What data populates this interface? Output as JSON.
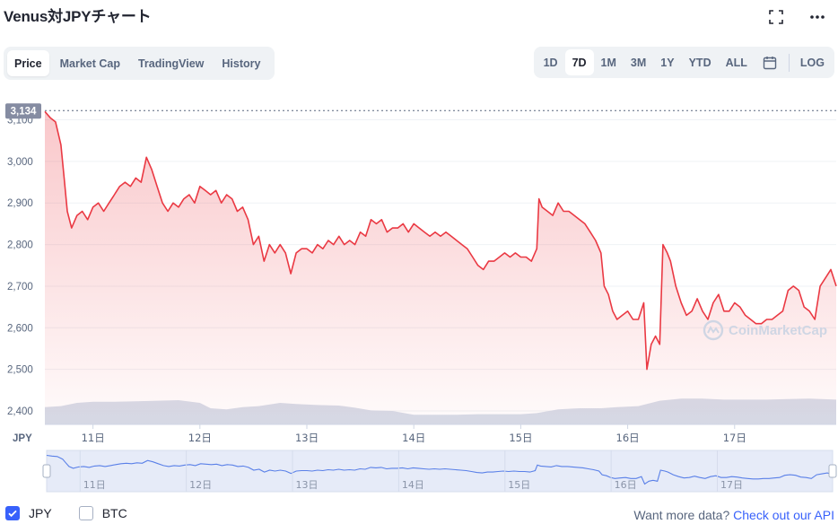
{
  "title": "Venus対JPYチャート",
  "tabs": [
    {
      "label": "Price",
      "active": true
    },
    {
      "label": "Market Cap",
      "active": false
    },
    {
      "label": "TradingView",
      "active": false
    },
    {
      "label": "History",
      "active": false
    }
  ],
  "ranges": [
    {
      "label": "1D",
      "active": false
    },
    {
      "label": "7D",
      "active": true
    },
    {
      "label": "1M",
      "active": false
    },
    {
      "label": "3M",
      "active": false
    },
    {
      "label": "1Y",
      "active": false
    },
    {
      "label": "YTD",
      "active": false
    },
    {
      "label": "ALL",
      "active": false
    }
  ],
  "log_label": "LOG",
  "watermark": "CoinMarketCap",
  "legend": {
    "jpy": "JPY",
    "btc": "BTC",
    "jpy_checked": true,
    "btc_checked": false
  },
  "api": {
    "prefix": "Want more data?",
    "link": "Check out our API"
  },
  "colors": {
    "line": "#ea3943",
    "accent": "#3861fb",
    "volume": "#cfd6e4"
  },
  "chart_data": {
    "type": "line",
    "currency_label": "JPY",
    "current_price_label": "3,134",
    "y_ticks": [
      "3,100",
      "3,000",
      "2,900",
      "2,800",
      "2,700",
      "2,600",
      "2,500",
      "2,400"
    ],
    "x_ticks": [
      "11日",
      "12日",
      "13日",
      "14日",
      "15日",
      "16日",
      "17日"
    ],
    "ylim": [
      2400,
      3140
    ],
    "x_range_days": [
      10.55,
      17.95
    ],
    "series": [
      {
        "type": "line",
        "points": [
          [
            10.55,
            3120
          ],
          [
            10.6,
            3105
          ],
          [
            10.65,
            3095
          ],
          [
            10.7,
            3040
          ],
          [
            10.73,
            2960
          ],
          [
            10.76,
            2880
          ],
          [
            10.8,
            2840
          ],
          [
            10.85,
            2870
          ],
          [
            10.9,
            2880
          ],
          [
            10.95,
            2860
          ],
          [
            11.0,
            2890
          ],
          [
            11.05,
            2900
          ],
          [
            11.1,
            2880
          ],
          [
            11.15,
            2900
          ],
          [
            11.2,
            2920
          ],
          [
            11.25,
            2940
          ],
          [
            11.3,
            2950
          ],
          [
            11.35,
            2940
          ],
          [
            11.4,
            2960
          ],
          [
            11.45,
            2950
          ],
          [
            11.5,
            3010
          ],
          [
            11.55,
            2980
          ],
          [
            11.6,
            2940
          ],
          [
            11.65,
            2900
          ],
          [
            11.7,
            2880
          ],
          [
            11.75,
            2900
          ],
          [
            11.8,
            2890
          ],
          [
            11.85,
            2910
          ],
          [
            11.9,
            2920
          ],
          [
            11.95,
            2900
          ],
          [
            12.0,
            2940
          ],
          [
            12.05,
            2930
          ],
          [
            12.1,
            2920
          ],
          [
            12.15,
            2930
          ],
          [
            12.2,
            2900
          ],
          [
            12.25,
            2920
          ],
          [
            12.3,
            2910
          ],
          [
            12.35,
            2880
          ],
          [
            12.4,
            2890
          ],
          [
            12.45,
            2860
          ],
          [
            12.5,
            2800
          ],
          [
            12.55,
            2820
          ],
          [
            12.6,
            2760
          ],
          [
            12.65,
            2800
          ],
          [
            12.7,
            2780
          ],
          [
            12.75,
            2800
          ],
          [
            12.8,
            2780
          ],
          [
            12.85,
            2730
          ],
          [
            12.9,
            2780
          ],
          [
            12.95,
            2790
          ],
          [
            13.0,
            2790
          ],
          [
            13.05,
            2780
          ],
          [
            13.1,
            2800
          ],
          [
            13.15,
            2790
          ],
          [
            13.2,
            2810
          ],
          [
            13.25,
            2800
          ],
          [
            13.3,
            2820
          ],
          [
            13.35,
            2800
          ],
          [
            13.4,
            2810
          ],
          [
            13.45,
            2800
          ],
          [
            13.5,
            2830
          ],
          [
            13.55,
            2820
          ],
          [
            13.6,
            2860
          ],
          [
            13.65,
            2850
          ],
          [
            13.7,
            2860
          ],
          [
            13.75,
            2830
          ],
          [
            13.8,
            2840
          ],
          [
            13.85,
            2840
          ],
          [
            13.9,
            2850
          ],
          [
            13.95,
            2830
          ],
          [
            14.0,
            2850
          ],
          [
            14.05,
            2840
          ],
          [
            14.1,
            2830
          ],
          [
            14.15,
            2820
          ],
          [
            14.2,
            2830
          ],
          [
            14.25,
            2820
          ],
          [
            14.3,
            2830
          ],
          [
            14.35,
            2820
          ],
          [
            14.4,
            2810
          ],
          [
            14.45,
            2800
          ],
          [
            14.5,
            2790
          ],
          [
            14.55,
            2770
          ],
          [
            14.6,
            2750
          ],
          [
            14.65,
            2740
          ],
          [
            14.7,
            2760
          ],
          [
            14.75,
            2760
          ],
          [
            14.8,
            2770
          ],
          [
            14.85,
            2780
          ],
          [
            14.9,
            2770
          ],
          [
            14.95,
            2780
          ],
          [
            15.0,
            2770
          ],
          [
            15.05,
            2770
          ],
          [
            15.1,
            2760
          ],
          [
            15.15,
            2790
          ],
          [
            15.17,
            2910
          ],
          [
            15.2,
            2890
          ],
          [
            15.25,
            2880
          ],
          [
            15.3,
            2870
          ],
          [
            15.35,
            2900
          ],
          [
            15.4,
            2880
          ],
          [
            15.45,
            2880
          ],
          [
            15.5,
            2870
          ],
          [
            15.55,
            2860
          ],
          [
            15.6,
            2850
          ],
          [
            15.65,
            2830
          ],
          [
            15.7,
            2810
          ],
          [
            15.75,
            2780
          ],
          [
            15.78,
            2700
          ],
          [
            15.82,
            2680
          ],
          [
            15.86,
            2640
          ],
          [
            15.9,
            2620
          ],
          [
            15.95,
            2630
          ],
          [
            16.0,
            2640
          ],
          [
            16.05,
            2620
          ],
          [
            16.1,
            2620
          ],
          [
            16.15,
            2660
          ],
          [
            16.18,
            2500
          ],
          [
            16.22,
            2560
          ],
          [
            16.26,
            2580
          ],
          [
            16.3,
            2560
          ],
          [
            16.33,
            2800
          ],
          [
            16.37,
            2780
          ],
          [
            16.4,
            2760
          ],
          [
            16.45,
            2700
          ],
          [
            16.5,
            2660
          ],
          [
            16.55,
            2630
          ],
          [
            16.6,
            2640
          ],
          [
            16.65,
            2670
          ],
          [
            16.7,
            2640
          ],
          [
            16.75,
            2620
          ],
          [
            16.8,
            2660
          ],
          [
            16.85,
            2680
          ],
          [
            16.9,
            2640
          ],
          [
            16.95,
            2640
          ],
          [
            17.0,
            2660
          ],
          [
            17.05,
            2650
          ],
          [
            17.1,
            2630
          ],
          [
            17.15,
            2620
          ],
          [
            17.2,
            2610
          ],
          [
            17.25,
            2610
          ],
          [
            17.3,
            2620
          ],
          [
            17.35,
            2620
          ],
          [
            17.4,
            2630
          ],
          [
            17.45,
            2640
          ],
          [
            17.5,
            2690
          ],
          [
            17.55,
            2700
          ],
          [
            17.6,
            2690
          ],
          [
            17.65,
            2650
          ],
          [
            17.7,
            2640
          ],
          [
            17.75,
            2620
          ],
          [
            17.8,
            2700
          ],
          [
            17.85,
            2720
          ],
          [
            17.9,
            2740
          ],
          [
            17.95,
            2700
          ]
        ]
      },
      {
        "type": "volume",
        "points": [
          [
            10.55,
            0.32
          ],
          [
            10.7,
            0.34
          ],
          [
            10.85,
            0.4
          ],
          [
            11.0,
            0.42
          ],
          [
            11.2,
            0.42
          ],
          [
            11.4,
            0.43
          ],
          [
            11.6,
            0.44
          ],
          [
            11.8,
            0.45
          ],
          [
            12.0,
            0.4
          ],
          [
            12.1,
            0.3
          ],
          [
            12.25,
            0.28
          ],
          [
            12.4,
            0.32
          ],
          [
            12.55,
            0.34
          ],
          [
            12.75,
            0.4
          ],
          [
            12.9,
            0.38
          ],
          [
            13.1,
            0.36
          ],
          [
            13.3,
            0.35
          ],
          [
            13.45,
            0.31
          ],
          [
            13.6,
            0.26
          ],
          [
            13.8,
            0.25
          ],
          [
            14.0,
            0.18
          ],
          [
            14.2,
            0.18
          ],
          [
            14.4,
            0.18
          ],
          [
            14.6,
            0.19
          ],
          [
            14.8,
            0.19
          ],
          [
            15.0,
            0.19
          ],
          [
            15.15,
            0.21
          ],
          [
            15.35,
            0.28
          ],
          [
            15.55,
            0.3
          ],
          [
            15.75,
            0.3
          ],
          [
            15.9,
            0.32
          ],
          [
            16.1,
            0.34
          ],
          [
            16.3,
            0.44
          ],
          [
            16.5,
            0.48
          ],
          [
            16.7,
            0.48
          ],
          [
            16.9,
            0.46
          ],
          [
            17.1,
            0.46
          ],
          [
            17.3,
            0.46
          ],
          [
            17.5,
            0.47
          ],
          [
            17.7,
            0.48
          ],
          [
            17.95,
            0.46
          ]
        ]
      }
    ],
    "grid": true
  }
}
